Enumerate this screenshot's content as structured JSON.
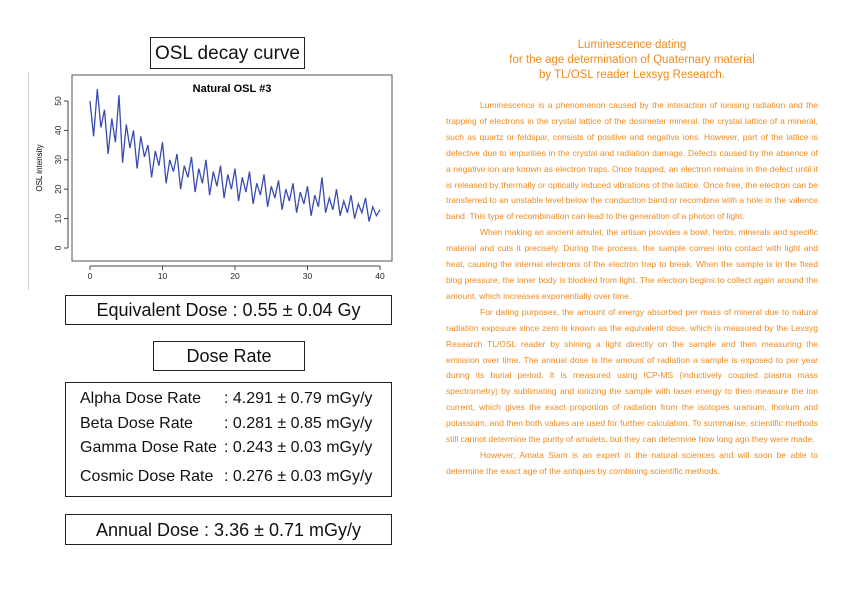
{
  "osl_title": "OSL decay curve",
  "equivalent_dose": "Equivalent Dose : 0.55 ±  0.04 Gy",
  "dose_rate_title": "Dose Rate",
  "dose_rates": [
    {
      "label": "Alpha Dose Rate",
      "value": ": 4.291 ±  0.79 mGy/y"
    },
    {
      "label": "Beta Dose Rate",
      "value": ": 0.281 ±  0.85 mGy/y"
    },
    {
      "label": "Gamma Dose Rate",
      "value": ": 0.243 ±  0.03 mGy/y"
    },
    {
      "label": "Cosmic Dose Rate",
      "value": ": 0.276 ± 0.03 mGy/y"
    }
  ],
  "annual_dose": "Annual Dose : 3.36 ±  0.71 mGy/y",
  "heading": [
    "Luminescence dating",
    "for the age determination of Quaternary material",
    "by TL/OSL reader Lexsyg Research."
  ],
  "paragraphs": [
    "Luminescence is a phenomenon caused by the interaction of ionising radiation and the trapping of electrons in the crystal lattice of the dosimeter mineral. the crystal lattice of a mineral, such as quartz or feldspar, consists of positive and negative ions. However, part of the lattice is defective due to impurities in the crystal and radiation damage. Defects caused by the absence of a negative ion are known as electron traps. Once trapped, an electron remains in the defect until it is released by thermally or optically induced vibrations of the lattice. Once free, the electron can be transferred to an unstable level below the conduction band or recombine with a hole in the valence band. This type of recombination can lead to the generation of a photon of light.",
    "When making an ancient amulet, the artisan provides a bowl, herbs, minerals and specific material and cuts it precisely. During the process, the sample comes into contact with light and heat, causing the internal electrons of the electron trap to break. When the sample is in the fixed blog pressure, the inner body is blocked from light. The electron begins to collect again around the amount, which increases exponentially over time.",
    "For dating purposes, the amount of energy absorbed per mass of mineral due to natural radiation exposure since zero is known as the equivalent dose, which is measured by the Lexsyg Research TL/OSL reader by shining a light directly on the sample and then measuring the emission over time. The annual dose is the amount of radiation a sample is exposed to per year during its burial period. It is measured using ICP-MS (inductively coupled plasma mass spectrometry) by sublimating and ionizing the sample with laser energy to then measure the ion current, which gives the exact proportion of radiation from the isotopes uranium, thorium and potassium, and then both values are used for further calculation. To summarise, scientific methods still cannot determine the purity of amulets, but they can determine how long ago they were made.",
    "However, Amata Siam is an expert in the natural sciences and will soon be able to determine the exact age of the antiques by combining scientific methods."
  ],
  "chart_data": {
    "type": "line",
    "title": "Natural OSL #3",
    "xlabel": "",
    "ylabel": "OSL intensity",
    "xlim": [
      0,
      40
    ],
    "ylim": [
      0,
      50
    ],
    "xticks": [
      0,
      10,
      20,
      30,
      40
    ],
    "yticks": [
      0,
      10,
      20,
      30,
      40,
      50
    ],
    "line_color": "#3a4bb0",
    "series": [
      {
        "x": [
          0,
          0.5,
          1,
          1.5,
          2,
          2.5,
          3,
          3.5,
          4,
          4.5,
          5,
          5.5,
          6,
          6.5,
          7,
          7.5,
          8,
          8.5,
          9,
          9.5,
          10,
          10.5,
          11,
          11.5,
          12,
          12.5,
          13,
          13.5,
          14,
          14.5,
          15,
          15.5,
          16,
          16.5,
          17,
          17.5,
          18,
          18.5,
          19,
          19.5,
          20,
          20.5,
          21,
          21.5,
          22,
          22.5,
          23,
          23.5,
          24,
          24.5,
          25,
          25.5,
          26,
          26.5,
          27,
          27.5,
          28,
          28.5,
          29,
          29.5,
          30,
          30.5,
          31,
          31.5,
          32,
          32.5,
          33,
          33.5,
          34,
          34.5,
          35,
          35.5,
          36,
          36.5,
          37,
          37.5,
          38,
          38.5,
          39,
          39.5,
          40
        ],
        "y": [
          50,
          38,
          54,
          41,
          47,
          32,
          44,
          36,
          52,
          29,
          42,
          34,
          40,
          27,
          38,
          31,
          35,
          24,
          33,
          28,
          36,
          22,
          30,
          26,
          32,
          20,
          28,
          24,
          31,
          19,
          27,
          22,
          30,
          18,
          26,
          21,
          28,
          17,
          25,
          20,
          27,
          16,
          24,
          19,
          26,
          15,
          22,
          18,
          25,
          14,
          21,
          17,
          23,
          13,
          20,
          16,
          22,
          12,
          19,
          15,
          21,
          11,
          18,
          14,
          24,
          12,
          17,
          13,
          20,
          11,
          16,
          12,
          18,
          10,
          15,
          12,
          17,
          9,
          14,
          11,
          13
        ]
      }
    ]
  }
}
